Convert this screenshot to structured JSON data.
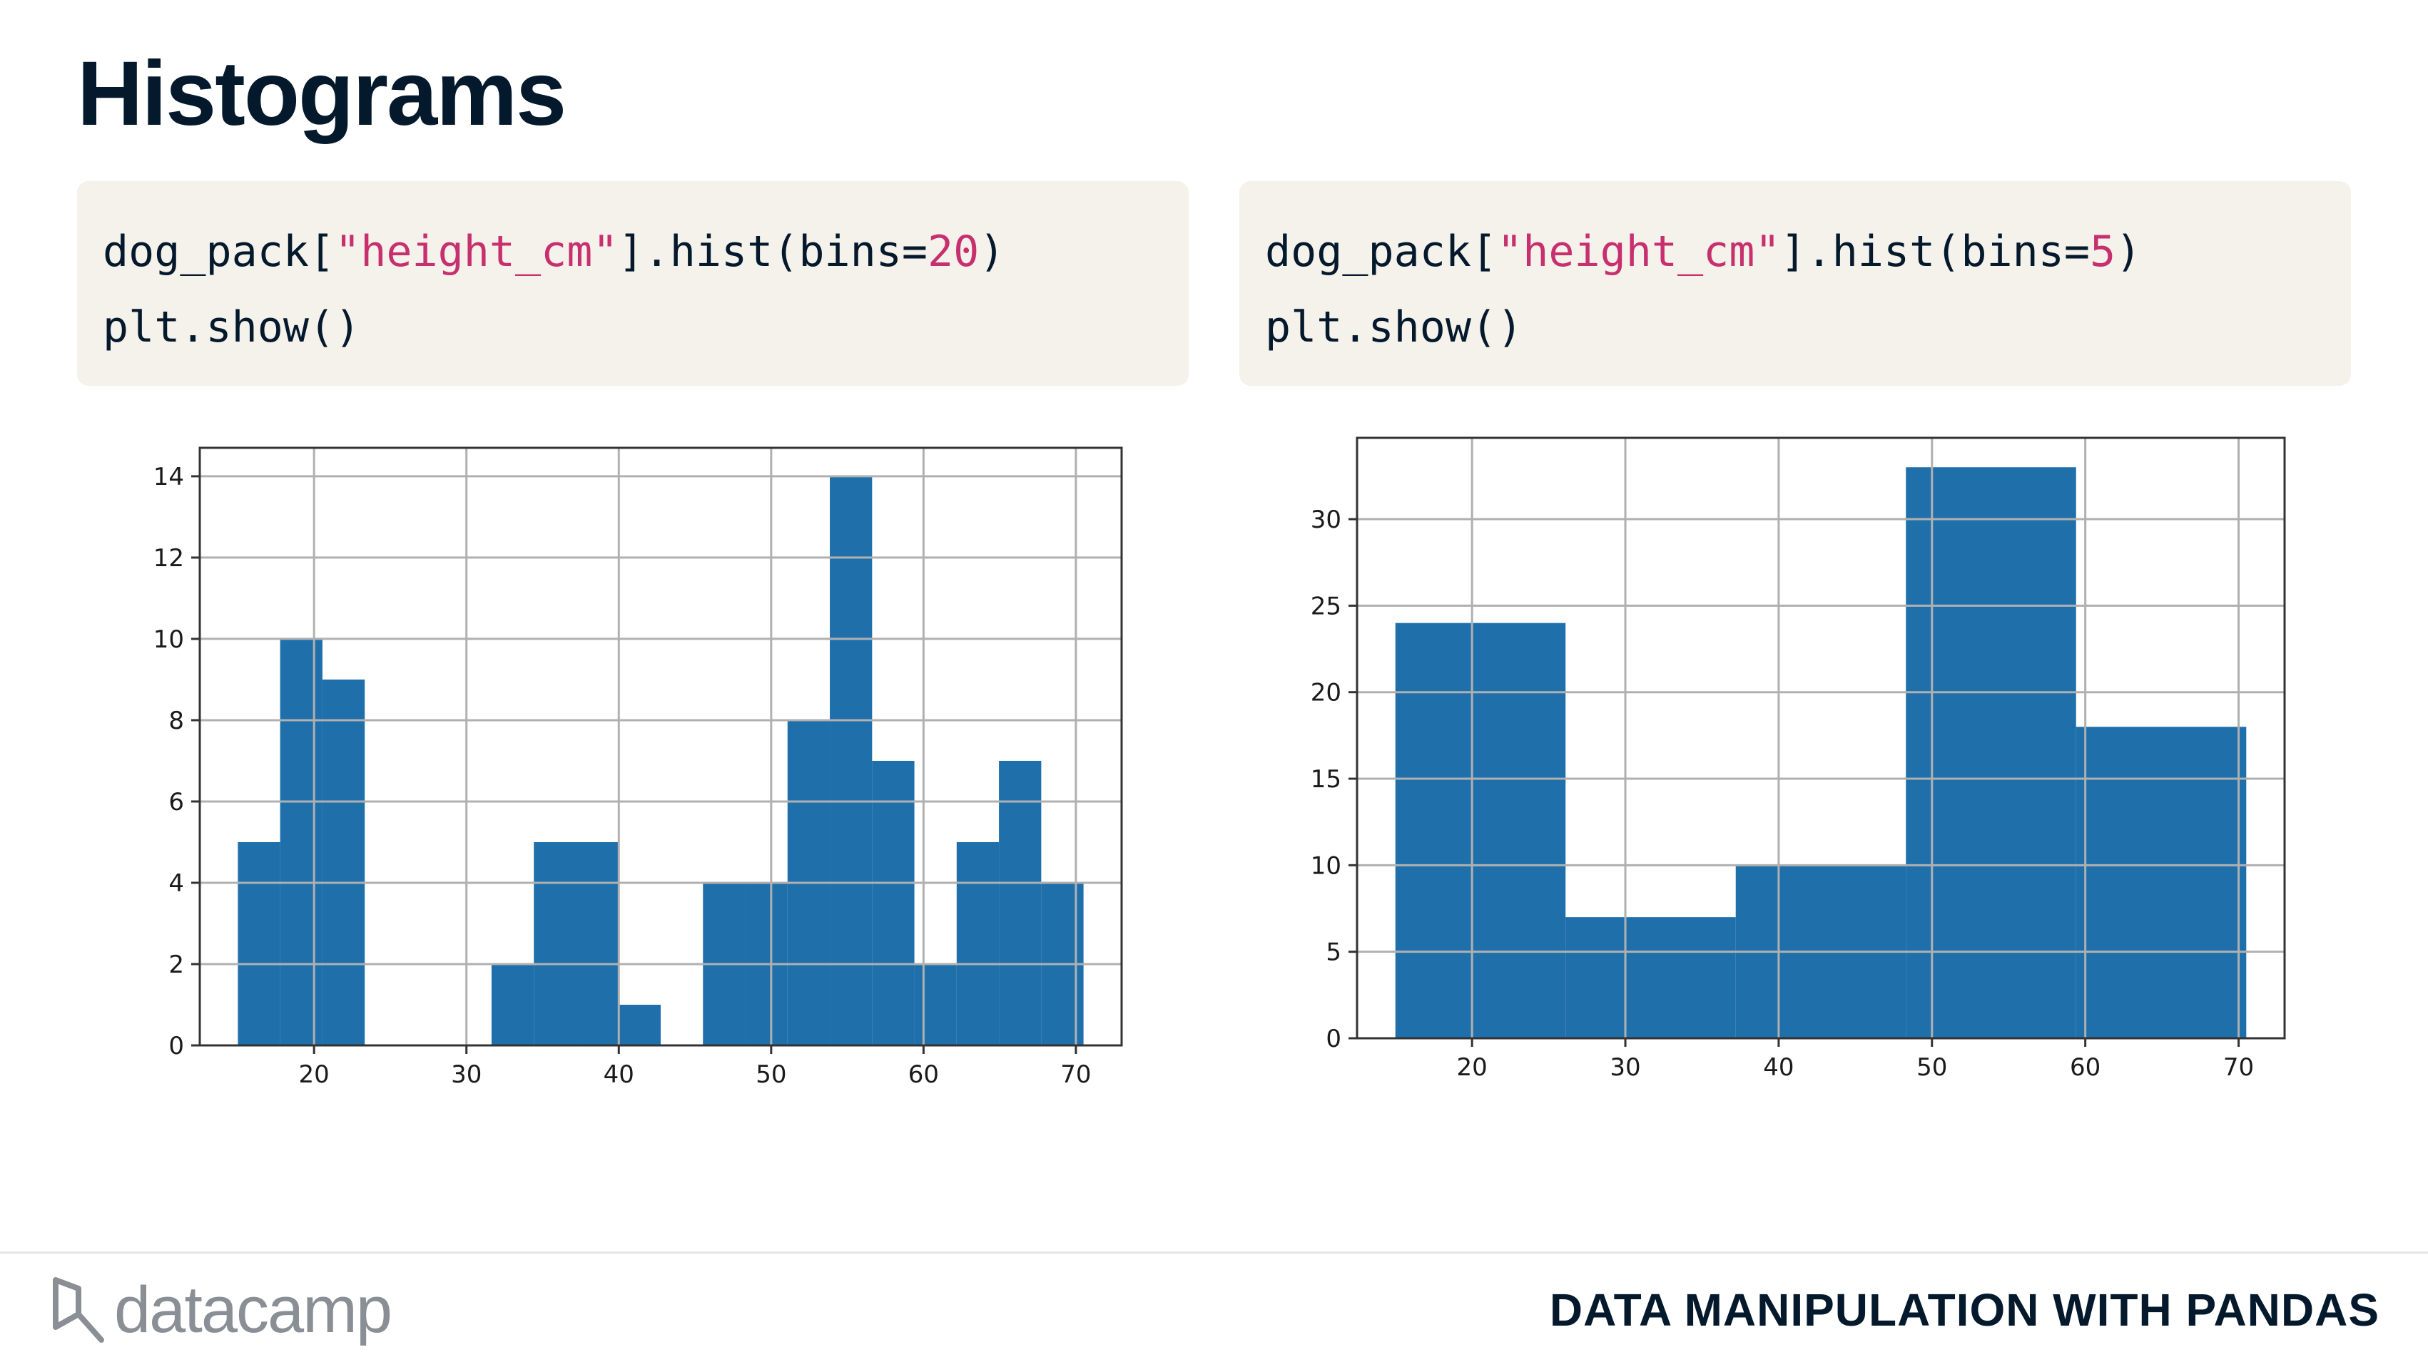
{
  "slide": {
    "title": "Histograms",
    "course": "DATA MANIPULATION WITH PANDAS",
    "brand": "datacamp"
  },
  "code": {
    "left": {
      "line1_prefix": "dog_pack[",
      "line1_string": "\"height_cm\"",
      "line1_mid": "].hist(bins=",
      "line1_num": "20",
      "line1_suffix": ")",
      "line2": "plt.show()"
    },
    "right": {
      "line1_prefix": "dog_pack[",
      "line1_string": "\"height_cm\"",
      "line1_mid": "].hist(bins=",
      "line1_num": "5",
      "line1_suffix": ")",
      "line2": "plt.show()"
    }
  },
  "colors": {
    "bar": "#1f6fab",
    "grid": "#b0b0b0",
    "axis": "#333333"
  },
  "chart_data": [
    {
      "type": "bar",
      "histogram": true,
      "bins": 20,
      "bin_start": 15,
      "bin_end": 70.5,
      "values": [
        5,
        10,
        9,
        0,
        0,
        0,
        2,
        5,
        5,
        1,
        0,
        4,
        4,
        8,
        14,
        7,
        2,
        5,
        7,
        4
      ],
      "xlim": [
        12.5,
        73
      ],
      "ylim": [
        0,
        14.7
      ],
      "xticks": [
        20,
        30,
        40,
        50,
        60,
        70
      ],
      "yticks": [
        0,
        2,
        4,
        6,
        8,
        10,
        12,
        14
      ],
      "grid": true
    },
    {
      "type": "bar",
      "histogram": true,
      "bins": 5,
      "bin_start": 15,
      "bin_end": 70.5,
      "values": [
        24,
        7,
        10,
        33,
        18
      ],
      "xlim": [
        12.5,
        73
      ],
      "ylim": [
        0,
        34.7
      ],
      "xticks": [
        20,
        30,
        40,
        50,
        60,
        70
      ],
      "yticks": [
        0,
        5,
        10,
        15,
        20,
        25,
        30
      ],
      "grid": true
    }
  ]
}
